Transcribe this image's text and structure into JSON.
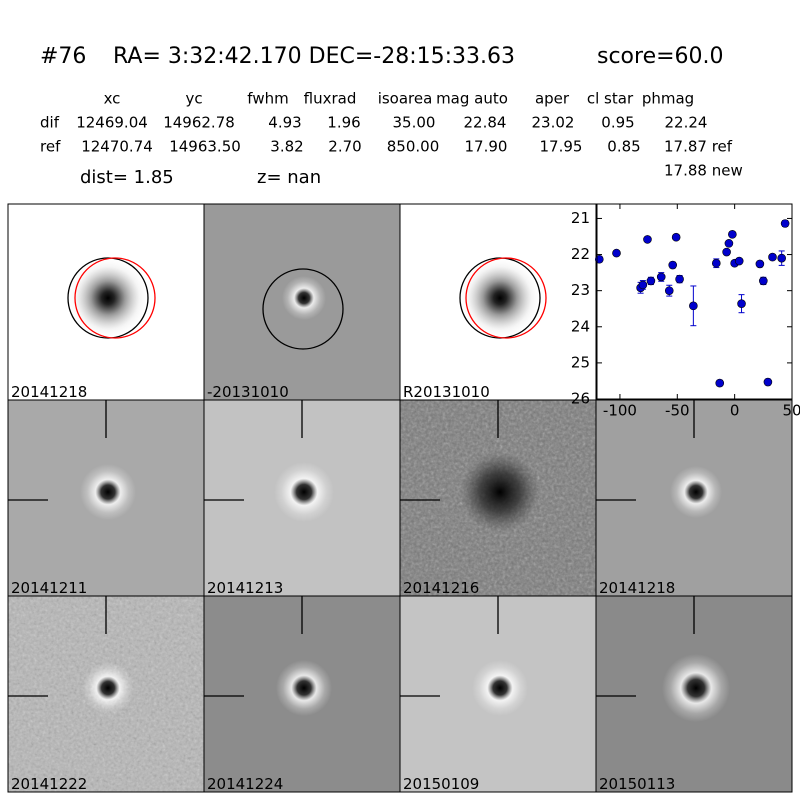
{
  "header": {
    "id": "#76",
    "coords": "RA= 3:32:42.170 DEC=-28:15:33.63",
    "score": "score=60.0"
  },
  "table": {
    "columns": [
      "xc",
      "yc",
      "fwhm",
      "fluxrad",
      "isoarea",
      "mag auto",
      "aper",
      "cl star",
      "phmag"
    ],
    "rows": [
      [
        "dif",
        "12469.04",
        "14962.78",
        "4.93",
        "1.96",
        "35.00",
        "22.84",
        "23.02",
        "0.95",
        "22.24"
      ],
      [
        "ref",
        "12470.74",
        "14963.50",
        "3.82",
        "2.70",
        "850.00",
        "17.90",
        "17.95",
        "0.85",
        "17.87 ref"
      ]
    ],
    "extra": "17.88 new"
  },
  "dist": "dist=  1.85",
  "z": "z=   nan",
  "panels": [
    {
      "label": "20141218"
    },
    {
      "label": "-20131010"
    },
    {
      "label": "R20131010"
    },
    {
      "label": "20141211"
    },
    {
      "label": "20141213"
    },
    {
      "label": "20141216"
    },
    {
      "label": "20141218",
      "color": "#ff0000"
    },
    {
      "label": "20141222"
    },
    {
      "label": "20141224"
    },
    {
      "label": "20150109"
    },
    {
      "label": "20150113"
    }
  ],
  "chart_data": {
    "type": "scatter",
    "x": [
      -118,
      -103,
      -82,
      -80,
      -76,
      -73,
      -64,
      -57,
      -54,
      -51,
      -48,
      -36,
      -16,
      -13,
      -7,
      -5,
      -2,
      0,
      4,
      6,
      22,
      25,
      29,
      33,
      41,
      44
    ],
    "y": [
      22.13,
      21.96,
      22.92,
      22.84,
      21.58,
      22.73,
      22.62,
      23.0,
      22.29,
      21.52,
      22.68,
      23.42,
      22.24,
      25.56,
      21.93,
      21.69,
      21.44,
      22.24,
      22.18,
      23.36,
      22.26,
      22.73,
      25.53,
      22.07,
      22.1,
      21.14
    ],
    "errors": [
      0.08,
      0.05,
      0.15,
      0.12,
      0.05,
      0.1,
      0.12,
      0.15,
      0.08,
      0.05,
      0.1,
      0.55,
      0.12,
      0.08,
      0.06,
      0.06,
      0.05,
      0.06,
      0.06,
      0.25,
      0.08,
      0.1,
      0.08,
      0.06,
      0.2,
      0.08
    ],
    "color": "#0000cc",
    "xlim": [
      -120,
      50
    ],
    "ylim": [
      26,
      20.6
    ],
    "xticks": [
      -100,
      -50,
      0,
      50
    ],
    "yticks": [
      21,
      22,
      23,
      24,
      25,
      26
    ]
  }
}
